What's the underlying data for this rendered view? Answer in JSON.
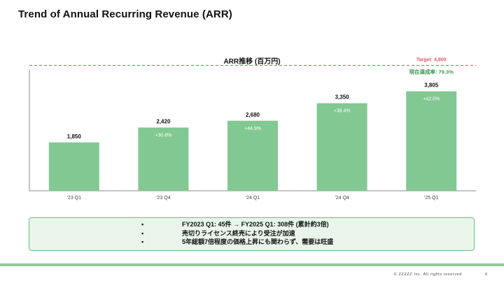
{
  "page": {
    "title": "Trend of Annual Recurring Revenue (ARR)"
  },
  "chart_data": {
    "type": "bar",
    "title": "ARR推移 (百万円)",
    "categories": [
      "'23 Q1",
      "'23 Q4",
      "'24 Q1",
      "'24 Q4",
      "'25 Q1"
    ],
    "values": [
      1850,
      2420,
      2680,
      3350,
      3805
    ],
    "value_labels": [
      "1,850",
      "2,420",
      "2,680",
      "3,350",
      "3,805"
    ],
    "growth_labels": [
      "",
      "+30.8%",
      "+44.9%",
      "+38.4%",
      "+42.0%"
    ],
    "ylim": [
      0,
      5000
    ],
    "target": {
      "value": 4800,
      "label": "Target: 4,800",
      "color": "#e05a5a"
    },
    "achievement_label": "現在達成率: 79.3%",
    "bar_color": "#82c892",
    "achievement_color": "#3f9a53",
    "grid": false,
    "xlabel": "",
    "ylabel": ""
  },
  "summary": {
    "items": [
      "FY2023 Q1: 45件 → FY2025 Q1: 308件 (累計約3倍)",
      "売切りライセンス終売により受注が加速",
      "5年総額7倍程度の価格上昇にも関わらず、需要は旺盛"
    ]
  },
  "footer": {
    "copyright": "© ZZZZZ Inc. All rights reserved.",
    "page_number": "6"
  }
}
